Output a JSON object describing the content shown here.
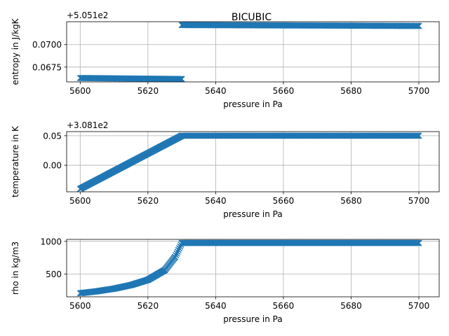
{
  "chart_data": [
    {
      "type": "scatter",
      "title": "BICUBIC",
      "xlabel": "pressure in Pa",
      "ylabel": "entropy in J/kgK",
      "offset_text": "+5.051e2",
      "xlim": [
        5596,
        5706
      ],
      "ylim": [
        0.06585,
        0.07255
      ],
      "xticks": [
        5600,
        5620,
        5640,
        5660,
        5680,
        5700
      ],
      "yticks": [
        0.0675,
        0.07
      ],
      "ytick_labels": [
        "0.0675",
        "0.0700"
      ],
      "grid": true,
      "color": "#1f77b4",
      "marker": "x",
      "segments": [
        {
          "x": [
            5600,
            5630
          ],
          "y": [
            0.06628,
            0.06617
          ]
        },
        {
          "x": [
            5630,
            5700
          ],
          "y": [
            0.07218,
            0.07208
          ]
        }
      ]
    },
    {
      "type": "scatter",
      "xlabel": "pressure in Pa",
      "ylabel": "temperature in K",
      "offset_text": "+3.081e2",
      "xlim": [
        5596,
        5706
      ],
      "ylim": [
        -0.045,
        0.057
      ],
      "xticks": [
        5600,
        5620,
        5640,
        5660,
        5680,
        5700
      ],
      "yticks": [
        0.0,
        0.05
      ],
      "ytick_labels": [
        "0.00",
        "0.05"
      ],
      "grid": true,
      "color": "#1f77b4",
      "marker": "x",
      "segments": [
        {
          "x": [
            5600,
            5630
          ],
          "y": [
            -0.04,
            0.05
          ]
        },
        {
          "x": [
            5630,
            5700
          ],
          "y": [
            0.05,
            0.05
          ]
        }
      ]
    },
    {
      "type": "scatter",
      "xlabel": "pressure in Pa",
      "ylabel": "rho in kg/m3",
      "xlim": [
        5596,
        5706
      ],
      "ylim": [
        150,
        1030
      ],
      "xticks": [
        5600,
        5620,
        5640,
        5660,
        5680,
        5700
      ],
      "yticks": [
        500,
        1000
      ],
      "ytick_labels": [
        "500",
        "1000"
      ],
      "grid": true,
      "color": "#1f77b4",
      "marker": "x",
      "segments": [
        {
          "x": [
            5600,
            5605,
            5610,
            5615,
            5620,
            5625,
            5628,
            5630
          ],
          "y": [
            205,
            235,
            275,
            330,
            410,
            560,
            760,
            975
          ]
        },
        {
          "x": [
            5630,
            5700
          ],
          "y": [
            975,
            975
          ]
        }
      ]
    }
  ]
}
